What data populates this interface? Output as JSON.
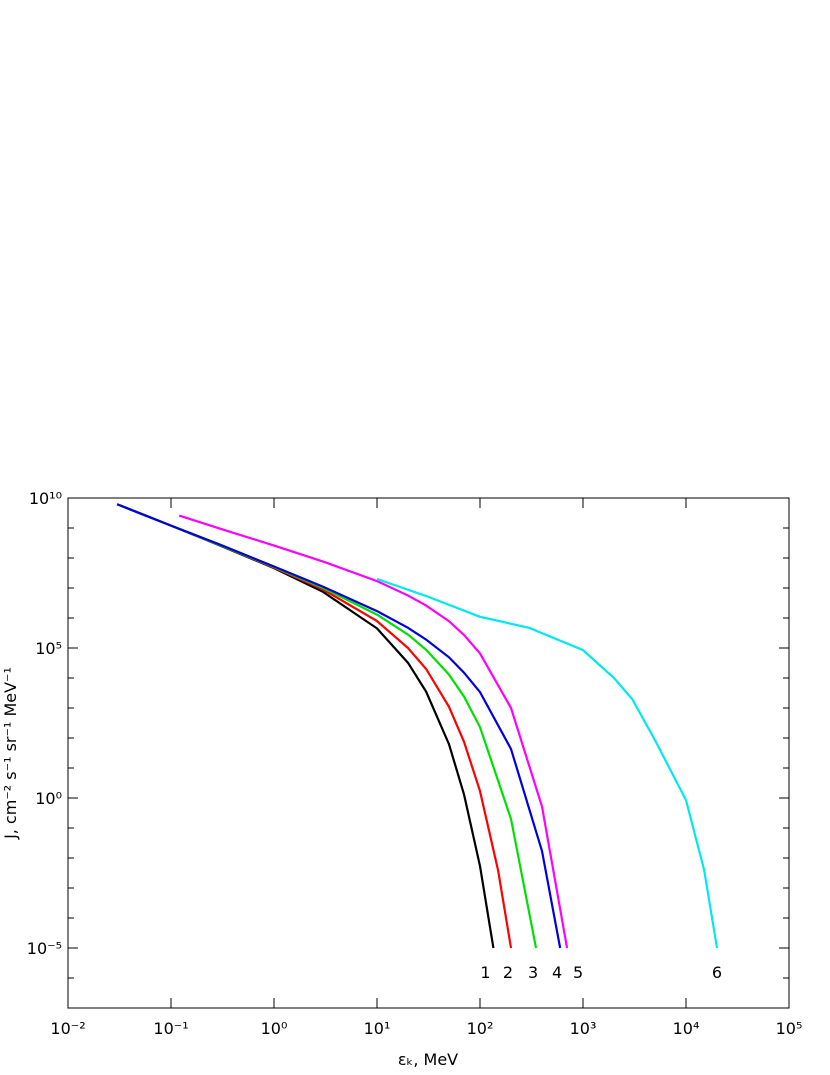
{
  "chart_data": {
    "type": "line",
    "xlabel": "εₖ, MeV",
    "ylabel": "J, cm⁻² s⁻¹ sr⁻¹ MeV⁻¹",
    "log_x": true,
    "log_y": true,
    "xlim": [
      0.01,
      100000
    ],
    "ylim": [
      1e-07,
      10000000000.0
    ],
    "xticks": [
      {
        "value": 0.01,
        "label": "10⁻²"
      },
      {
        "value": 0.1,
        "label": "10⁻¹"
      },
      {
        "value": 1,
        "label": "10⁰"
      },
      {
        "value": 10,
        "label": "10¹"
      },
      {
        "value": 100,
        "label": "10²"
      },
      {
        "value": 1000,
        "label": "10³"
      },
      {
        "value": 10000,
        "label": "10⁴"
      },
      {
        "value": 100000,
        "label": "10⁵"
      }
    ],
    "yticks": [
      {
        "value": 1e-05,
        "label": "10⁻⁵"
      },
      {
        "value": 1,
        "label": "10⁰"
      },
      {
        "value": 100000,
        "label": "10⁵"
      },
      {
        "value": 10000000000.0,
        "label": "10¹⁰"
      }
    ],
    "yminorticks": [
      1e-06,
      0.0001,
      0.001,
      0.01,
      0.1,
      10,
      100,
      1000,
      10000,
      1000000.0,
      10000000.0,
      100000000.0,
      1000000000.0
    ],
    "series": [
      {
        "name": "1",
        "color": "#000000",
        "x": [
          0.03,
          0.1,
          0.3,
          1,
          3,
          10,
          20,
          30,
          50,
          70,
          100,
          135
        ],
        "values": [
          6200000000.0,
          1200000000.0,
          260000000.0,
          46000000.0,
          7400000.0,
          450000.0,
          32000.0,
          3500.0,
          62,
          1.3,
          0.0054,
          1e-05
        ]
      },
      {
        "name": "2",
        "color": "#ff0000",
        "x": [
          0.03,
          0.1,
          0.3,
          1,
          3,
          10,
          20,
          30,
          50,
          70,
          100,
          150,
          200
        ],
        "values": [
          6200000000.0,
          1200000000.0,
          270000000.0,
          48000000.0,
          8900000.0,
          790000.0,
          100000.0,
          20000.0,
          1100.0,
          74,
          1.7,
          0.0038,
          1e-05
        ]
      },
      {
        "name": "3",
        "color": "#00e000",
        "x": [
          0.03,
          0.1,
          0.3,
          1,
          3,
          10,
          20,
          30,
          50,
          70,
          100,
          200,
          350
        ],
        "values": [
          6200000000.0,
          1200000000.0,
          270000000.0,
          50000000.0,
          10000000.0,
          1300000.0,
          280000.0,
          87000.0,
          13000.0,
          2400.0,
          230,
          0.2,
          1e-05
        ]
      },
      {
        "name": "4",
        "color": "#0000e0",
        "x": [
          0.03,
          0.1,
          0.3,
          1,
          3,
          10,
          20,
          30,
          50,
          70,
          100,
          200,
          400,
          600
        ],
        "values": [
          6200000000.0,
          1200000000.0,
          280000000.0,
          52000000.0,
          11000000.0,
          1700000.0,
          470000.0,
          190000.0,
          49000.0,
          15000.0,
          3400.0,
          43,
          0.017,
          1e-05
        ]
      },
      {
        "name": "5",
        "color": "#ff00ff",
        "x": [
          0.12,
          0.3,
          1,
          3,
          10,
          20,
          30,
          50,
          70,
          100,
          200,
          400,
          700
        ],
        "values": [
          2600000000.0,
          950000000.0,
          260000000.0,
          76000000.0,
          17000000.0,
          5600000.0,
          2600000.0,
          780000.0,
          270000.0,
          66000.0,
          1000.0,
          0.52,
          1e-05
        ]
      },
      {
        "name": "6",
        "color": "#00e8f0",
        "x": [
          10,
          30,
          100,
          300,
          1000,
          2000,
          3000,
          5000,
          10000,
          15000,
          20000
        ],
        "values": [
          20000000.0,
          5400000.0,
          1100000.0,
          470000.0,
          85000.0,
          10000.0,
          2000.0,
          85,
          0.85,
          0.004,
          1e-05
        ]
      }
    ]
  }
}
